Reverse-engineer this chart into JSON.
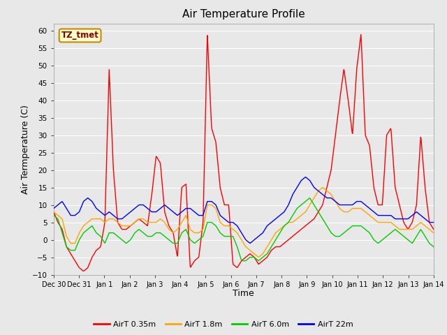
{
  "title": "Air Temperature Profile",
  "xlabel": "Time",
  "ylabel": "Air Termperature (C)",
  "ylim": [
    -10,
    62
  ],
  "yticks": [
    -10,
    -5,
    0,
    5,
    10,
    15,
    20,
    25,
    30,
    35,
    40,
    45,
    50,
    55,
    60
  ],
  "annotation_text": "TZ_tmet",
  "annotation_box_color": "#FFFFCC",
  "annotation_box_edge": "#CC8800",
  "annotation_text_color": "#880000",
  "bg_color": "#E8E8E8",
  "legend_entries": [
    "AirT 0.35m",
    "AirT 1.8m",
    "AirT 6.0m",
    "AirT 22m"
  ],
  "line_colors": [
    "#FF0000",
    "#FFA500",
    "#00CC00",
    "#0000FF"
  ],
  "line_width": 1.0,
  "x_tick_labels": [
    "Dec 30",
    "Dec 31",
    "Jan 1",
    "Jan 2",
    "Jan 3",
    "Jan 4",
    "Jan 5",
    "Jan 6",
    "Jan 7",
    "Jan 8",
    "Jan 9",
    "Jan 10",
    "Jan 11",
    "Jan 12",
    "Jan 13",
    "Jan 14"
  ]
}
